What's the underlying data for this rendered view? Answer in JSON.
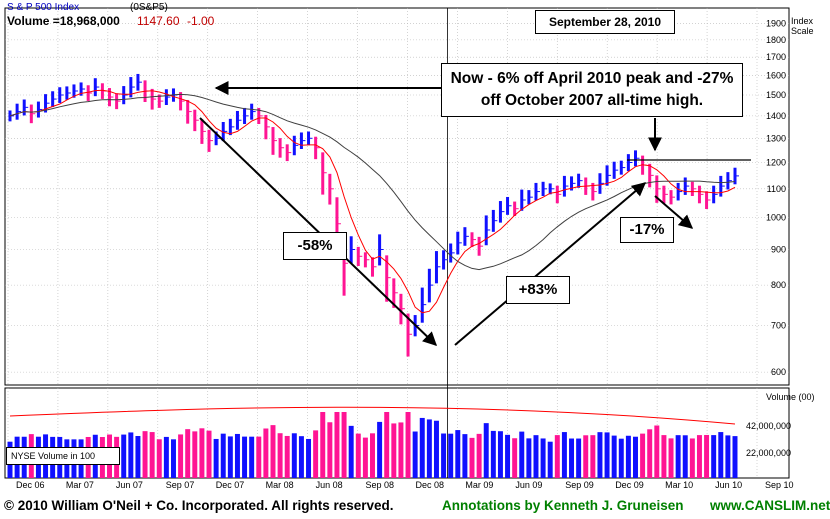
{
  "header": {
    "index_name": "S & P 500 Index",
    "symbol": "(0S&P5)",
    "volume_text": "Volume =18,968,000",
    "last_price": "1147.60",
    "change": "-1.00",
    "date_box": "September 28, 2010",
    "axis_title_line1": "Index",
    "axis_title_line2": "Scale"
  },
  "annotations": {
    "peak_note_line1": "Now - 6% off April 2010 peak and -27%",
    "peak_note_line2": "off October 2007 all-time high.",
    "decline_pct": "-58%",
    "rally_pct": "+83%",
    "correction_pct": "-17%"
  },
  "volume_panel": {
    "label": "NYSE Volume in 100",
    "axis_title": "Volume (00)",
    "tick_1": "42,000,000",
    "tick_2": "22,000,000"
  },
  "footer": {
    "copyright": "© 2010 William O'Neil + Co. Incorporated. All rights reserved.",
    "annotations_credit": "Annotations by Kenneth J. Gruneisen",
    "site": "www.CANSLIM.net"
  },
  "colors": {
    "up_bar": "#1010ff",
    "down_bar": "#ff1493",
    "ma_short": "#ff0000",
    "ma_long": "#404040",
    "date_text": "#c00000"
  },
  "chart_data": {
    "type": "line",
    "scale": "log",
    "ylim": [
      575,
      2000
    ],
    "yticks": [
      600,
      700,
      800,
      900,
      1000,
      1100,
      1200,
      1300,
      1400,
      1500,
      1600,
      1700,
      1800,
      1900
    ],
    "x_labels": [
      "Dec 06",
      "Mar 07",
      "Jun 07",
      "Sep 07",
      "Dec 07",
      "Mar 08",
      "Jun 08",
      "Sep 08",
      "Dec 08",
      "Mar 09",
      "Jun 09",
      "Sep 09",
      "Dec 09",
      "Mar 10",
      "Jun 10",
      "Sep 10"
    ],
    "series": [
      {
        "values": [
          1400,
          1420,
          1440,
          1410,
          1430,
          1460,
          1480,
          1500,
          1510,
          1520,
          1530,
          1510,
          1540,
          1520,
          1490,
          1470,
          1500,
          1540,
          1565,
          1520,
          1480,
          1470,
          1490,
          1500,
          1470,
          1420,
          1380,
          1330,
          1290,
          1300,
          1330,
          1350,
          1380,
          1400,
          1420,
          1400,
          1350,
          1290,
          1260,
          1240,
          1270,
          1290,
          1300,
          1260,
          1160,
          1100,
          980,
          860,
          900,
          880,
          870,
          850,
          900,
          820,
          780,
          740,
          680,
          700,
          750,
          800,
          850,
          870,
          890,
          920,
          940,
          930,
          910,
          960,
          990,
          1020,
          1040,
          1030,
          1060,
          1070,
          1090,
          1100,
          1100,
          1080,
          1110,
          1120,
          1130,
          1110,
          1090,
          1120,
          1150,
          1170,
          1180,
          1200,
          1217,
          1190,
          1150,
          1100,
          1080,
          1070,
          1090,
          1110,
          1100,
          1080,
          1060,
          1080,
          1110,
          1130,
          1148
        ]
      }
    ]
  }
}
